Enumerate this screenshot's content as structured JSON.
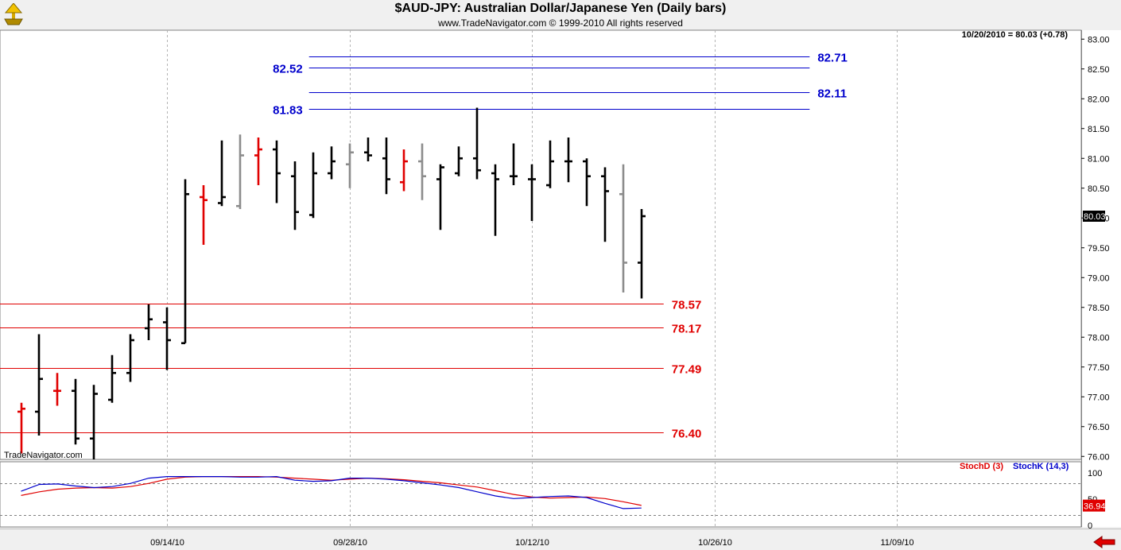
{
  "header": {
    "title": "$AUD-JPY:  Australian Dollar/Japanese Yen  (Daily bars)",
    "copyright": "www.TradeNavigator.com © 1999-2010 All rights reserved"
  },
  "chart_data": {
    "type": "bar",
    "subtype": "ohlc",
    "grid": true,
    "price_axis": {
      "range": [
        75.95,
        83.15
      ],
      "ticks": [
        "83.00",
        "82.50",
        "82.00",
        "81.50",
        "81.00",
        "80.50",
        "80.00",
        "79.50",
        "79.00",
        "78.50",
        "78.00",
        "77.50",
        "77.00",
        "76.50",
        "76.00"
      ]
    },
    "date_axis": {
      "ticks": [
        {
          "label": "09/14/10",
          "bar": 8
        },
        {
          "label": "09/28/10",
          "bar": 18
        },
        {
          "label": "10/12/10",
          "bar": 28
        },
        {
          "label": "10/26/10",
          "bar": 38
        },
        {
          "label": "11/09/10",
          "bar": 48
        }
      ]
    },
    "last_info": "10/20/2010 = 80.03 (+0.78)",
    "last_price": "80.03",
    "watermark": "TradeNavigator.com",
    "bar_colors": {
      "black": "#000000",
      "red": "#e00000",
      "gray": "#8c8c8c"
    },
    "bars": [
      {
        "o": 76.75,
        "h": 76.9,
        "l": 76.05,
        "c": 76.8,
        "color": "red"
      },
      {
        "o": 76.75,
        "h": 78.05,
        "l": 76.35,
        "c": 77.3,
        "color": "black"
      },
      {
        "o": 77.1,
        "h": 77.4,
        "l": 76.85,
        "c": 77.1,
        "color": "red"
      },
      {
        "o": 77.1,
        "h": 77.3,
        "l": 76.2,
        "c": 76.3,
        "color": "black"
      },
      {
        "o": 76.3,
        "h": 77.2,
        "l": 75.95,
        "c": 77.05,
        "color": "black"
      },
      {
        "o": 76.95,
        "h": 77.7,
        "l": 76.9,
        "c": 77.4,
        "color": "black"
      },
      {
        "o": 77.4,
        "h": 78.05,
        "l": 77.25,
        "c": 77.95,
        "color": "black"
      },
      {
        "o": 78.15,
        "h": 78.55,
        "l": 77.95,
        "c": 78.3,
        "color": "black"
      },
      {
        "o": 78.25,
        "h": 78.5,
        "l": 77.45,
        "c": 77.95,
        "color": "black"
      },
      {
        "o": 77.9,
        "h": 80.65,
        "l": 77.9,
        "c": 80.4,
        "color": "black"
      },
      {
        "o": 80.35,
        "h": 80.55,
        "l": 79.55,
        "c": 80.3,
        "color": "red"
      },
      {
        "o": 80.25,
        "h": 81.3,
        "l": 80.2,
        "c": 80.35,
        "color": "black"
      },
      {
        "o": 80.2,
        "h": 81.4,
        "l": 80.15,
        "c": 81.05,
        "color": "gray"
      },
      {
        "o": 81.05,
        "h": 81.35,
        "l": 80.55,
        "c": 81.15,
        "color": "red"
      },
      {
        "o": 81.15,
        "h": 81.3,
        "l": 80.25,
        "c": 80.75,
        "color": "black"
      },
      {
        "o": 80.7,
        "h": 80.95,
        "l": 79.8,
        "c": 80.1,
        "color": "black"
      },
      {
        "o": 80.05,
        "h": 81.1,
        "l": 80.0,
        "c": 80.75,
        "color": "black"
      },
      {
        "o": 80.75,
        "h": 81.2,
        "l": 80.65,
        "c": 80.95,
        "color": "black"
      },
      {
        "o": 80.9,
        "h": 81.25,
        "l": 80.5,
        "c": 81.1,
        "color": "gray"
      },
      {
        "o": 81.1,
        "h": 81.35,
        "l": 80.95,
        "c": 81.05,
        "color": "black"
      },
      {
        "o": 81.0,
        "h": 81.35,
        "l": 80.4,
        "c": 80.65,
        "color": "black"
      },
      {
        "o": 80.6,
        "h": 81.15,
        "l": 80.45,
        "c": 80.95,
        "color": "red"
      },
      {
        "o": 80.95,
        "h": 81.25,
        "l": 80.3,
        "c": 80.7,
        "color": "gray"
      },
      {
        "o": 80.65,
        "h": 80.9,
        "l": 79.8,
        "c": 80.85,
        "color": "black"
      },
      {
        "o": 80.75,
        "h": 81.2,
        "l": 80.7,
        "c": 81.0,
        "color": "black"
      },
      {
        "o": 81.0,
        "h": 81.85,
        "l": 80.65,
        "c": 80.8,
        "color": "black"
      },
      {
        "o": 80.75,
        "h": 80.9,
        "l": 79.7,
        "c": 80.65,
        "color": "black"
      },
      {
        "o": 80.7,
        "h": 81.25,
        "l": 80.55,
        "c": 80.7,
        "color": "black"
      },
      {
        "o": 80.65,
        "h": 80.9,
        "l": 79.95,
        "c": 80.65,
        "color": "black"
      },
      {
        "o": 80.55,
        "h": 81.3,
        "l": 80.5,
        "c": 80.95,
        "color": "black"
      },
      {
        "o": 80.95,
        "h": 81.35,
        "l": 80.6,
        "c": 80.95,
        "color": "black"
      },
      {
        "o": 80.95,
        "h": 81.0,
        "l": 80.2,
        "c": 80.7,
        "color": "black"
      },
      {
        "o": 80.7,
        "h": 80.85,
        "l": 79.6,
        "c": 80.45,
        "color": "black"
      },
      {
        "o": 80.4,
        "h": 80.9,
        "l": 78.75,
        "c": 79.25,
        "color": "gray"
      },
      {
        "o": 79.25,
        "h": 80.15,
        "l": 78.65,
        "c": 80.03,
        "color": "black"
      }
    ],
    "levels": [
      {
        "value": 82.71,
        "label": "82.71",
        "color": "#0000cc",
        "from_bar": 16,
        "to_bar": 43,
        "label_side": "right"
      },
      {
        "value": 82.52,
        "label": "82.52",
        "color": "#0000cc",
        "from_bar": 16,
        "to_bar": 43,
        "label_side": "left"
      },
      {
        "value": 82.11,
        "label": "82.11",
        "color": "#0000cc",
        "from_bar": 16,
        "to_bar": 43,
        "label_side": "right"
      },
      {
        "value": 81.83,
        "label": "81.83",
        "color": "#0000cc",
        "from_bar": 16,
        "to_bar": 43,
        "label_side": "left"
      },
      {
        "value": 78.57,
        "label": "78.57",
        "color": "#e00000",
        "from_bar": -1,
        "to_bar": 35,
        "label_side": "right"
      },
      {
        "value": 78.17,
        "label": "78.17",
        "color": "#e00000",
        "from_bar": -1,
        "to_bar": 35,
        "label_side": "right"
      },
      {
        "value": 77.49,
        "label": "77.49",
        "color": "#e00000",
        "from_bar": -1,
        "to_bar": 35,
        "label_side": "right"
      },
      {
        "value": 76.4,
        "label": "76.40",
        "color": "#e00000",
        "from_bar": -1,
        "to_bar": 35,
        "label_side": "right"
      }
    ],
    "stochastic": {
      "range": [
        0,
        100
      ],
      "ticks": [
        "100",
        "50",
        "0"
      ],
      "reference_levels": [
        80,
        20
      ],
      "last_value": "36.94",
      "stochd": {
        "name": "StochD (3)",
        "color": "#e00000",
        "values": [
          57,
          64,
          69,
          71,
          72,
          71,
          74,
          80,
          88,
          92,
          93,
          93,
          93,
          93,
          92,
          90,
          88,
          86,
          88,
          90,
          89,
          87,
          84,
          81,
          77,
          73,
          66,
          59,
          54,
          52,
          53,
          54,
          51,
          45,
          38
        ]
      },
      "stochk": {
        "name": "StochK (14,3)",
        "color": "#0000cc",
        "values": [
          65,
          78,
          79,
          75,
          72,
          74,
          80,
          90,
          93,
          93,
          93,
          93,
          92,
          92,
          93,
          86,
          84,
          85,
          90,
          90,
          88,
          85,
          81,
          77,
          72,
          64,
          56,
          51,
          53,
          55,
          56,
          53,
          42,
          32,
          33
        ]
      }
    }
  }
}
